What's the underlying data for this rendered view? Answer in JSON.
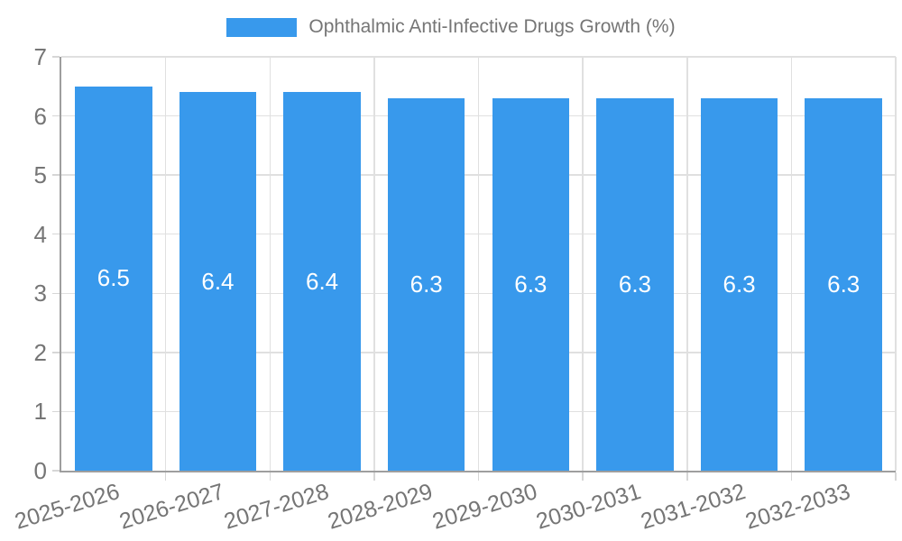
{
  "chart_data": {
    "type": "bar",
    "title": "Ophthalmic Anti-Infective Drugs Growth (%)",
    "legend": [
      {
        "label": "Ophthalmic Anti-Infective Drugs Growth (%)"
      }
    ],
    "legend_position": "top-center",
    "categories": [
      "2025-2026",
      "2026-2027",
      "2027-2028",
      "2028-2029",
      "2029-2030",
      "2030-2031",
      "2031-2032",
      "2032-2033"
    ],
    "values": [
      6.5,
      6.4,
      6.4,
      6.3,
      6.3,
      6.3,
      6.3,
      6.3
    ],
    "bar_labels": [
      "6.5",
      "6.4",
      "6.4",
      "6.3",
      "6.3",
      "6.3",
      "6.3",
      "6.3"
    ],
    "xlabel": "",
    "ylabel": "",
    "ylim": [
      0,
      7
    ],
    "yticks": [
      0,
      1,
      2,
      3,
      4,
      5,
      6,
      7
    ],
    "grid": true,
    "colors": {
      "bar": "#3899EC",
      "bar_label": "#FFFFFF",
      "grid": "#E0E0E0",
      "axis": "#9E9E9E",
      "tick_text": "#757575"
    }
  }
}
